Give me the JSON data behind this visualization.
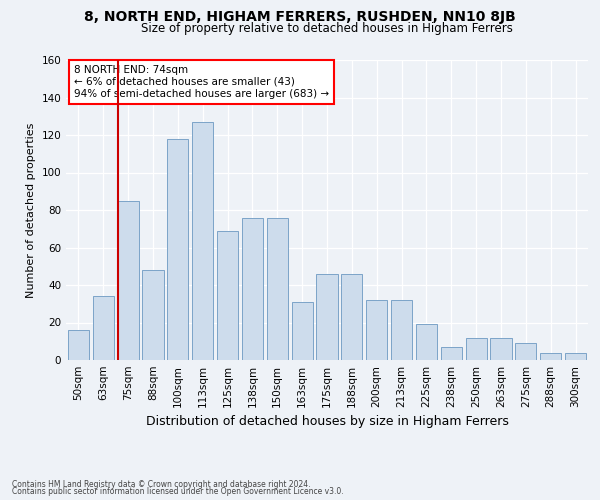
{
  "title": "8, NORTH END, HIGHAM FERRERS, RUSHDEN, NN10 8JB",
  "subtitle": "Size of property relative to detached houses in Higham Ferrers",
  "xlabel": "Distribution of detached houses by size in Higham Ferrers",
  "ylabel": "Number of detached properties",
  "bar_labels": [
    "50sqm",
    "63sqm",
    "75sqm",
    "88sqm",
    "100sqm",
    "113sqm",
    "125sqm",
    "138sqm",
    "150sqm",
    "163sqm",
    "175sqm",
    "188sqm",
    "200sqm",
    "213sqm",
    "225sqm",
    "238sqm",
    "250sqm",
    "263sqm",
    "275sqm",
    "288sqm",
    "300sqm"
  ],
  "bar_values": [
    16,
    34,
    85,
    48,
    118,
    127,
    69,
    76,
    76,
    31,
    46,
    46,
    32,
    32,
    19,
    7,
    12,
    12,
    9,
    4,
    4
  ],
  "bar_color": "#cddcec",
  "bar_edge_color": "#7ba3c8",
  "vline_x_index": 2,
  "ylim": [
    0,
    160
  ],
  "yticks": [
    0,
    20,
    40,
    60,
    80,
    100,
    120,
    140,
    160
  ],
  "annotation_title": "8 NORTH END: 74sqm",
  "annotation_line1": "← 6% of detached houses are smaller (43)",
  "annotation_line2": "94% of semi-detached houses are larger (683) →",
  "footer_line1": "Contains HM Land Registry data © Crown copyright and database right 2024.",
  "footer_line2": "Contains public sector information licensed under the Open Government Licence v3.0.",
  "bg_color": "#eef2f7",
  "plot_bg_color": "#eef2f7",
  "grid_color": "#ffffff",
  "vline_color": "#cc0000",
  "title_fontsize": 10,
  "subtitle_fontsize": 8.5,
  "ylabel_fontsize": 8,
  "xlabel_fontsize": 9,
  "tick_fontsize": 7.5,
  "annotation_fontsize": 7.5
}
